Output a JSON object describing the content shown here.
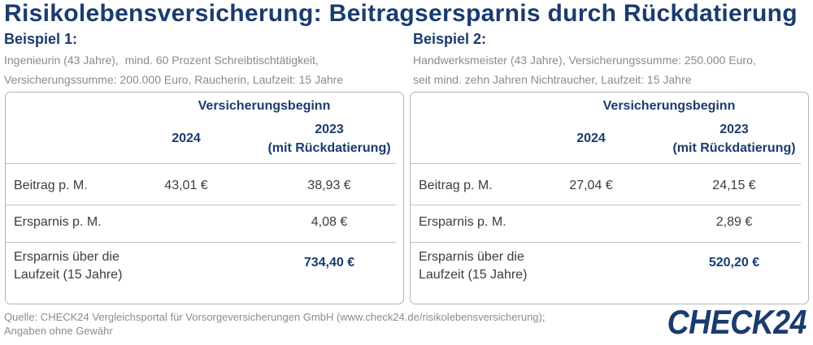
{
  "title": "Risikolebensversicherung: Beitragsersparnis durch Rückdatierung",
  "colors": {
    "navy": "#1a3b6e",
    "text": "#3c3c3c",
    "muted": "#8a8a8a",
    "border": "#b4b4b4"
  },
  "examples": [
    {
      "heading": "Beispiel 1:",
      "description_lines": [
        "Ingenieurin (43 Jahre),  mind. 60 Prozent Schreibtischtätigkeit,",
        "Versicherungssumme: 200.000 Euro, Raucherin, Laufzeit: 15 Jahre"
      ],
      "table": {
        "group_header": "Versicherungsbeginn",
        "columns": [
          {
            "year": "2024"
          },
          {
            "year": "2023",
            "note": "(mit Rückdatierung)"
          }
        ],
        "rows": [
          {
            "label": "Beitrag p. M.",
            "values": [
              "43,01 €",
              "38,93 €"
            ]
          },
          {
            "label": "Ersparnis p. M.",
            "values": [
              null,
              "4,08 €"
            ]
          },
          {
            "label": "Ersparnis über die Laufzeit (15 Jahre)",
            "values": [
              null,
              "734,40 €"
            ]
          }
        ]
      }
    },
    {
      "heading": "Beispiel 2:",
      "description_lines": [
        "Handwerksmeister (43 Jahre), Versicherungssumme: 250.000 Euro,",
        "seit mind. zehn Jahren Nichtraucher, Laufzeit: 15 Jahre"
      ],
      "table": {
        "group_header": "Versicherungsbeginn",
        "columns": [
          {
            "year": "2024"
          },
          {
            "year": "2023",
            "note": "(mit Rückdatierung)"
          }
        ],
        "rows": [
          {
            "label": "Beitrag p. M.",
            "values": [
              "27,04 €",
              "24,15 €"
            ]
          },
          {
            "label": "Ersparnis p. M.",
            "values": [
              null,
              "2,89 €"
            ]
          },
          {
            "label": "Ersparnis über die Laufzeit (15 Jahre)",
            "values": [
              null,
              "520,20 €"
            ]
          }
        ]
      }
    }
  ],
  "footer": {
    "source_lines": [
      "Quelle: CHECK24 Vergleichsportal für Vorsorgeversicherungen GmbH (www.check24.de/risikolebensversicherung);",
      "Angaben ohne Gewähr"
    ]
  },
  "logo": {
    "text": "CHECK24"
  }
}
